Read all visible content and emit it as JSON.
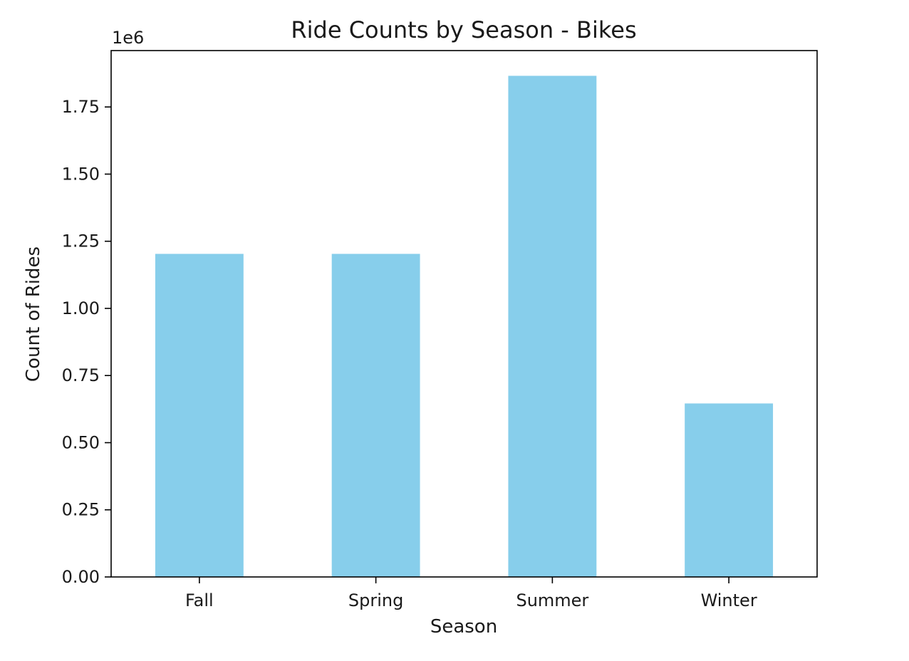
{
  "chart_data": {
    "type": "bar",
    "title": "Ride Counts by Season - Bikes",
    "xlabel": "Season",
    "ylabel": "Count of Rides",
    "offset_label": "1e6",
    "categories": [
      "Fall",
      "Spring",
      "Summer",
      "Winter"
    ],
    "values": [
      1203000,
      1203000,
      1866000,
      646000
    ],
    "ylim": [
      0,
      1960000
    ],
    "yticks": [
      0,
      250000,
      500000,
      750000,
      1000000,
      1250000,
      1500000,
      1750000
    ],
    "ytick_labels": [
      "0.00",
      "0.25",
      "0.50",
      "0.75",
      "1.00",
      "1.25",
      "1.50",
      "1.75"
    ],
    "grid": false,
    "bar_color": "#87CEEB"
  }
}
